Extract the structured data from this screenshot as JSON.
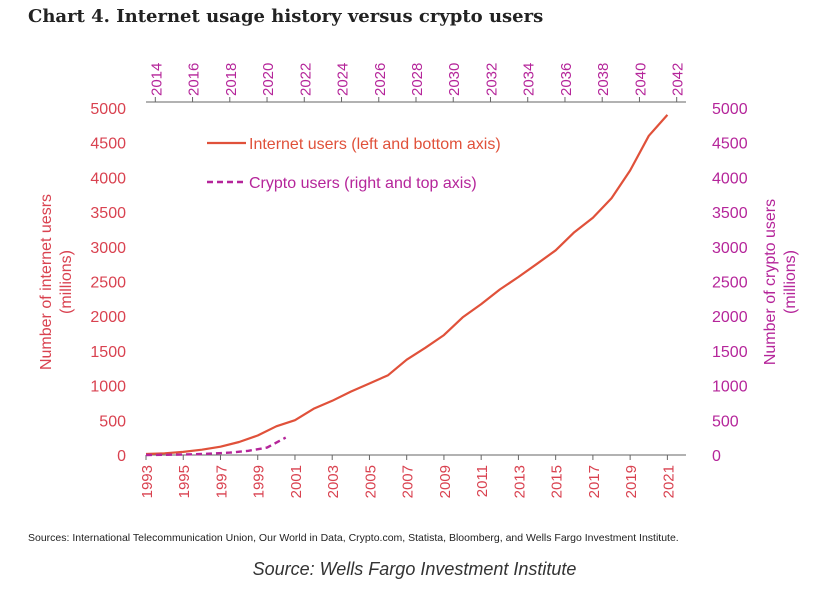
{
  "title": "Chart 4. Internet usage history versus crypto users",
  "sources": "Sources: International Telecommunication Union, Our World in Data, Crypto.com, Statista, Bloomberg, and Wells Fargo Investment Institute.",
  "credit": "Source: Wells Fargo Investment Institute",
  "colors": {
    "internet": "#e0513a",
    "crypto": "#b5259a",
    "left_axis": "#d94250",
    "right_axis": "#b5259a"
  },
  "chart_data": {
    "type": "line",
    "title": "Chart 4. Internet usage history versus crypto users",
    "ylabel_left": "Number of internet uesrs (millions)",
    "ylabel_right": "Number of crypto users (millions)",
    "ylim_left": [
      0,
      5000
    ],
    "ylim_right": [
      0,
      5000
    ],
    "xlim_bottom": [
      1993,
      2022
    ],
    "xlim_top": [
      2013.5,
      2042.5
    ],
    "y_ticks": [
      0,
      500,
      1000,
      1500,
      2000,
      2500,
      3000,
      3500,
      4000,
      4500,
      5000
    ],
    "x_ticks_bottom": [
      1993,
      1995,
      1997,
      1999,
      2001,
      2003,
      2005,
      2007,
      2009,
      2011,
      2013,
      2015,
      2017,
      2019,
      2021
    ],
    "x_ticks_top": [
      2014,
      2016,
      2018,
      2020,
      2022,
      2024,
      2026,
      2028,
      2030,
      2032,
      2034,
      2036,
      2038,
      2040,
      2042
    ],
    "grid": false,
    "legend_position": "top-left",
    "series": [
      {
        "name": "Internet users (left and bottom axis)",
        "axis": "left-bottom",
        "style": "solid",
        "x": [
          1993,
          1994,
          1995,
          1996,
          1997,
          1998,
          1999,
          2000,
          2001,
          2002,
          2003,
          2004,
          2005,
          2006,
          2007,
          2008,
          2009,
          2010,
          2011,
          2012,
          2013,
          2014,
          2015,
          2016,
          2017,
          2018,
          2019,
          2020,
          2021
        ],
        "values": [
          14,
          25,
          44,
          77,
          120,
          188,
          281,
          414,
          502,
          665,
          781,
          913,
          1030,
          1150,
          1373,
          1544,
          1727,
          1983,
          2174,
          2385,
          2565,
          2755,
          2950,
          3210,
          3420,
          3700,
          4100,
          4600,
          4900
        ]
      },
      {
        "name": "Crypto users (right and top axis)",
        "axis": "right-top",
        "style": "dashed",
        "x": [
          2013.5,
          2014,
          2015,
          2016,
          2017,
          2018,
          2019,
          2020,
          2021
        ],
        "values": [
          0,
          2,
          5,
          10,
          20,
          35,
          60,
          106,
          250
        ]
      }
    ]
  }
}
